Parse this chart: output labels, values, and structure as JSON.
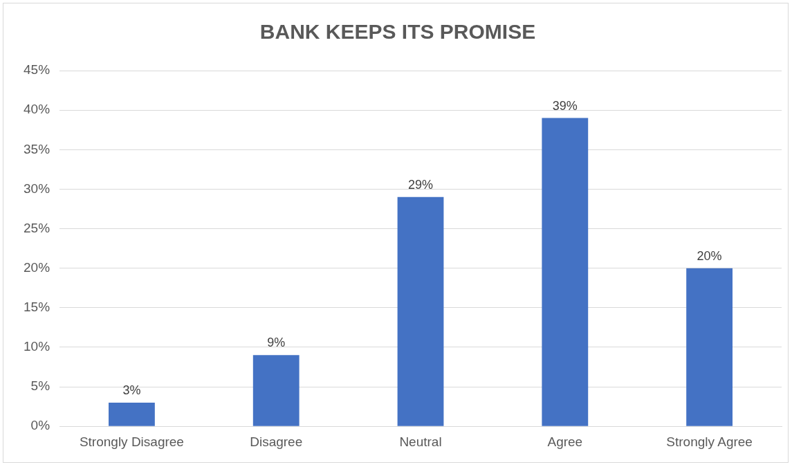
{
  "chart_data": {
    "type": "bar",
    "title": "BANK KEEPS ITS PROMISE",
    "categories": [
      "Strongly Disagree",
      "Disagree",
      "Neutral",
      "Agree",
      "Strongly Agree"
    ],
    "values": [
      3,
      9,
      29,
      39,
      20
    ],
    "color": "#4472c4",
    "value_labels": [
      "3%",
      "9%",
      "29%",
      "39%",
      "20%"
    ],
    "ylim": [
      0,
      45
    ],
    "yticks": [
      {
        "value": 0,
        "label": "0%"
      },
      {
        "value": 5,
        "label": "5%"
      },
      {
        "value": 10,
        "label": "10%"
      },
      {
        "value": 15,
        "label": "15%"
      },
      {
        "value": 20,
        "label": "20%"
      },
      {
        "value": 25,
        "label": "25%"
      },
      {
        "value": 30,
        "label": "30%"
      },
      {
        "value": 35,
        "label": "35%"
      },
      {
        "value": 40,
        "label": "40%"
      },
      {
        "value": 45,
        "label": "45%"
      }
    ],
    "grid": "y"
  }
}
